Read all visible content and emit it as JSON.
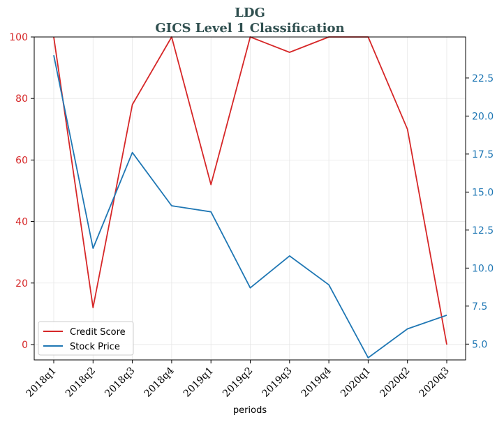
{
  "chart_data": {
    "type": "line",
    "title": "LDG",
    "subtitle": "GICS Level 1 Classification",
    "xlabel": "periods",
    "categories": [
      "2018q1",
      "2018q2",
      "2018q3",
      "2018q4",
      "2019q1",
      "2019q2",
      "2019q3",
      "2019q4",
      "2020q1",
      "2020q2",
      "2020q3"
    ],
    "y_left": {
      "range": [
        -5,
        100
      ],
      "ticks": [
        0,
        20,
        40,
        60,
        80,
        100
      ],
      "tick_labels": [
        "0",
        "20",
        "40",
        "60",
        "80",
        "100"
      ],
      "color": "#d62728"
    },
    "y_right": {
      "range": [
        3.96,
        25.2
      ],
      "ticks": [
        5.0,
        7.5,
        10.0,
        12.5,
        15.0,
        17.5,
        20.0,
        22.5
      ],
      "tick_labels": [
        "5.0",
        "7.5",
        "10.0",
        "12.5",
        "15.0",
        "17.5",
        "20.0",
        "22.5"
      ],
      "color": "#1f77b4"
    },
    "series": [
      {
        "name": "Credit Score",
        "axis": "left",
        "color": "#d62728",
        "values": [
          100,
          12,
          78,
          100,
          52,
          100,
          95,
          100,
          100,
          70,
          0
        ]
      },
      {
        "name": "Stock Price",
        "axis": "right",
        "color": "#1f77b4",
        "values": [
          24.0,
          11.3,
          17.6,
          14.1,
          13.7,
          8.7,
          10.8,
          8.9,
          4.1,
          6.0,
          6.9
        ]
      }
    ],
    "grid": true,
    "legend": {
      "placement": "lower-left"
    }
  }
}
